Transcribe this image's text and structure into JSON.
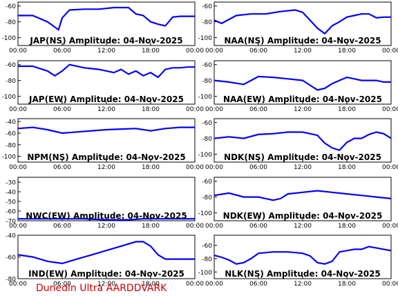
{
  "app": {
    "title": "Dunedin Ultra AARDDVARK"
  },
  "colors": {
    "trace": "#0000ff",
    "frame": "#000000",
    "credit": "#cc0000",
    "background": "#ffffff"
  },
  "chart_data": [
    {
      "type": "line",
      "title": "JAP(NS) Amplitude: 04-Nov-2025",
      "xlabel": "",
      "ylabel": "",
      "xticks": [
        "00:00",
        "06:00",
        "12:00",
        "18:00",
        "00:00"
      ],
      "xlim": [
        0,
        24
      ],
      "ylim": [
        -110,
        -55
      ],
      "yticks": [
        -100,
        -80,
        -60
      ],
      "grid": false,
      "series": [
        {
          "x": [
            0,
            2,
            4,
            5.5,
            6,
            7,
            9,
            11,
            13,
            15,
            16,
            17,
            18,
            19,
            20,
            21,
            22,
            23,
            24
          ],
          "values": [
            -72,
            -72,
            -80,
            -90,
            -75,
            -65,
            -64,
            -64,
            -62,
            -62,
            -70,
            -72,
            -80,
            -83,
            -85,
            -74,
            -73,
            -73,
            -73
          ]
        }
      ]
    },
    {
      "type": "line",
      "title": "NAA(NS) Amplitude: 04-Nov-2025",
      "xlabel": "",
      "ylabel": "",
      "xticks": [
        "00:00",
        "06:00",
        "12:00",
        "18:00",
        "00:00"
      ],
      "xlim": [
        0,
        24
      ],
      "ylim": [
        -110,
        -55
      ],
      "yticks": [
        -100,
        -80,
        -60
      ],
      "grid": false,
      "series": [
        {
          "x": [
            0,
            1,
            3,
            5,
            7,
            9,
            11,
            12,
            13,
            14,
            15,
            16,
            17,
            18,
            19,
            20,
            21,
            22,
            23,
            24
          ],
          "values": [
            -78,
            -82,
            -72,
            -70,
            -70,
            -67,
            -65,
            -68,
            -78,
            -88,
            -95,
            -85,
            -80,
            -74,
            -72,
            -70,
            -70,
            -75,
            -74,
            -74
          ]
        }
      ]
    },
    {
      "type": "line",
      "title": "JAP(EW) Amplitude: 04-Nov-2025",
      "xlabel": "",
      "ylabel": "",
      "xticks": [
        "00:00",
        "06:00",
        "12:00",
        "18:00",
        "00:00"
      ],
      "xlim": [
        0,
        24
      ],
      "ylim": [
        -110,
        -55
      ],
      "yticks": [
        -100,
        -80,
        -60
      ],
      "grid": false,
      "series": [
        {
          "x": [
            0,
            2,
            4,
            5,
            6,
            7,
            9,
            11,
            13,
            14,
            15,
            16,
            17,
            18,
            19,
            20,
            21,
            22,
            23,
            24
          ],
          "values": [
            -62,
            -62,
            -68,
            -74,
            -68,
            -60,
            -64,
            -66,
            -70,
            -66,
            -72,
            -68,
            -74,
            -70,
            -76,
            -66,
            -64,
            -64,
            -63,
            -63
          ]
        }
      ]
    },
    {
      "type": "line",
      "title": "NAA(EW) Amplitude: 04-Nov-2025",
      "xlabel": "",
      "ylabel": "",
      "xticks": [
        "00:00",
        "06:00",
        "12:00",
        "18:00",
        "00:00"
      ],
      "xlim": [
        0,
        24
      ],
      "ylim": [
        -110,
        -55
      ],
      "yticks": [
        -100,
        -80,
        -60
      ],
      "grid": false,
      "series": [
        {
          "x": [
            0,
            2,
            4,
            6,
            8,
            10,
            12,
            13,
            14,
            15,
            16,
            17,
            18,
            19,
            20,
            21,
            22,
            23,
            24
          ],
          "values": [
            -80,
            -82,
            -85,
            -75,
            -76,
            -78,
            -80,
            -86,
            -92,
            -90,
            -84,
            -80,
            -76,
            -78,
            -80,
            -80,
            -80,
            -82,
            -82
          ]
        }
      ]
    },
    {
      "type": "line",
      "title": "NPM(NS) Amplitude: 04-Nov-2025",
      "xlabel": "",
      "ylabel": "",
      "xticks": [
        "00:00",
        "06:00",
        "12:00",
        "18:00",
        "00:00"
      ],
      "xlim": [
        0,
        24
      ],
      "ylim": [
        -110,
        -35
      ],
      "yticks": [
        -100,
        -80,
        -60,
        -40
      ],
      "grid": false,
      "series": [
        {
          "x": [
            0,
            2,
            4,
            6,
            8,
            10,
            12,
            14,
            16,
            18,
            20,
            22,
            24
          ],
          "values": [
            -52,
            -50,
            -54,
            -60,
            -58,
            -56,
            -54,
            -53,
            -52,
            -56,
            -52,
            -50,
            -50
          ]
        }
      ]
    },
    {
      "type": "line",
      "title": "NDK(NS) Amplitude: 04-Nov-2025",
      "xlabel": "",
      "ylabel": "",
      "xticks": [
        "00:00",
        "06:00",
        "12:00",
        "18:00",
        "00:00"
      ],
      "xlim": [
        0,
        24
      ],
      "ylim": [
        -110,
        -55
      ],
      "yticks": [
        -100,
        -80,
        -60
      ],
      "grid": false,
      "series": [
        {
          "x": [
            0,
            2,
            4,
            6,
            8,
            10,
            12,
            14,
            15,
            16,
            17,
            18,
            19,
            20,
            21,
            22,
            23,
            24
          ],
          "values": [
            -80,
            -78,
            -80,
            -75,
            -74,
            -72,
            -72,
            -76,
            -86,
            -92,
            -95,
            -85,
            -80,
            -80,
            -75,
            -72,
            -74,
            -80
          ]
        }
      ]
    },
    {
      "type": "line",
      "title": "NWC(EW) Amplitude: 04-Nov-2025",
      "xlabel": "",
      "ylabel": "",
      "xticks": [
        "00:00",
        "06:00",
        "12:00",
        "18:00",
        "00:00"
      ],
      "xlim": [
        0,
        24
      ],
      "ylim": [
        -70,
        -25
      ],
      "yticks": [
        -70,
        -60,
        -50,
        -40,
        -30
      ],
      "grid": false,
      "series": [
        {
          "x": [
            0,
            3,
            6,
            9,
            12,
            15,
            17,
            20,
            23,
            24
          ],
          "values": [
            -68,
            -68,
            -68,
            -68,
            -69,
            -69,
            -68,
            -68,
            -68,
            -68
          ]
        }
      ]
    },
    {
      "type": "line",
      "title": "NDK(EW) Amplitude: 04-Nov-2025",
      "xlabel": "",
      "ylabel": "",
      "xticks": [
        "00:00",
        "06:00",
        "12:00",
        "18:00",
        "00:00"
      ],
      "xlim": [
        0,
        24
      ],
      "ylim": [
        -110,
        -55
      ],
      "yticks": [
        -100,
        -80,
        -60
      ],
      "grid": false,
      "series": [
        {
          "x": [
            0,
            2,
            4,
            6,
            8,
            9,
            10,
            12,
            14,
            16,
            18,
            20,
            22,
            24
          ],
          "values": [
            -78,
            -75,
            -80,
            -80,
            -84,
            -82,
            -76,
            -74,
            -72,
            -74,
            -76,
            -78,
            -80,
            -82
          ]
        }
      ]
    },
    {
      "type": "line",
      "title": "IND(EW) Amplitude: 04-Nov-2025",
      "xlabel": "",
      "ylabel": "",
      "xticks": [
        "00:00",
        "06:00",
        "12:00",
        "18:00",
        "00:00"
      ],
      "xlim": [
        0,
        24
      ],
      "ylim": [
        -80,
        -40
      ],
      "yticks": [
        -80,
        -60,
        -40
      ],
      "grid": false,
      "series": [
        {
          "x": [
            0,
            2,
            4,
            6,
            8,
            10,
            12,
            14,
            16,
            17,
            18,
            19,
            20,
            22,
            24
          ],
          "values": [
            -58,
            -60,
            -64,
            -66,
            -62,
            -58,
            -54,
            -50,
            -46,
            -46,
            -50,
            -58,
            -62,
            -62,
            -62
          ]
        }
      ]
    },
    {
      "type": "line",
      "title": "NLK(NS) Amplitude: 04-Nov-2025",
      "xlabel": "",
      "ylabel": "",
      "xticks": [
        "00:00",
        "06:00",
        "12:00",
        "18:00",
        "00:00"
      ],
      "xlim": [
        0,
        24
      ],
      "ylim": [
        -110,
        -45
      ],
      "yticks": [
        -100,
        -80,
        -60
      ],
      "grid": false,
      "series": [
        {
          "x": [
            0,
            1,
            2,
            3,
            4,
            5,
            6,
            8,
            10,
            12,
            13,
            14,
            15,
            16,
            17,
            18,
            19,
            20,
            21,
            22,
            23,
            24
          ],
          "values": [
            -75,
            -78,
            -82,
            -88,
            -86,
            -80,
            -72,
            -70,
            -70,
            -72,
            -76,
            -86,
            -88,
            -84,
            -70,
            -68,
            -66,
            -66,
            -62,
            -64,
            -66,
            -68
          ]
        }
      ]
    }
  ]
}
